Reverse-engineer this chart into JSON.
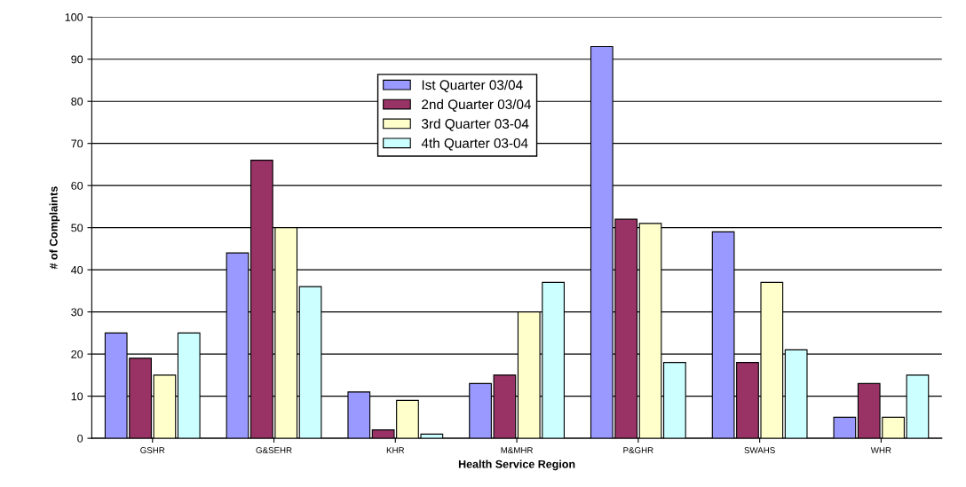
{
  "chart_data": {
    "type": "bar",
    "xlabel": "Health Service Region",
    "ylabel": "# of Complaints",
    "categories": [
      "GSHR",
      "G&SEHR",
      "KHR",
      "M&MHR",
      "P&GHR",
      "SWAHS",
      "WHR"
    ],
    "series": [
      {
        "name": "Ist Quarter 03/04",
        "color": "#9999ff",
        "values": [
          25,
          44,
          11,
          13,
          93,
          49,
          5
        ]
      },
      {
        "name": "2nd Quarter 03/04",
        "color": "#993366",
        "values": [
          19,
          66,
          2,
          15,
          52,
          18,
          13
        ]
      },
      {
        "name": "3rd Quarter 03-04",
        "color": "#ffffcc",
        "values": [
          15,
          50,
          9,
          30,
          51,
          37,
          5
        ]
      },
      {
        "name": "4th Quarter 03-04",
        "color": "#ccffff",
        "values": [
          25,
          36,
          1,
          37,
          18,
          21,
          15
        ]
      }
    ],
    "ylim": [
      0,
      100
    ],
    "yticks": [
      0,
      10,
      20,
      30,
      40,
      50,
      60,
      70,
      80,
      90,
      100
    ],
    "grid": "y",
    "legend": "top"
  }
}
